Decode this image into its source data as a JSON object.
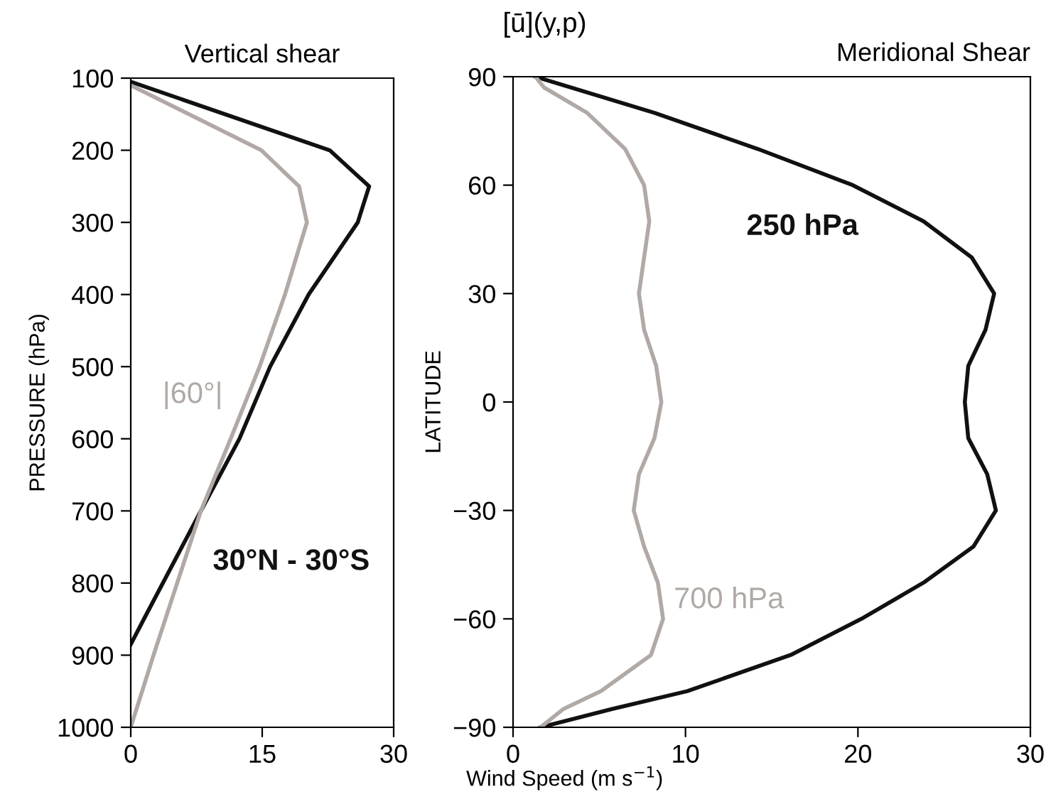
{
  "chart_data": [
    {
      "type": "line",
      "title": "Vertical shear",
      "ylabel": "PRESSURE (hPa)",
      "xlim": [
        0,
        30
      ],
      "xticks": [
        0,
        15,
        30
      ],
      "ylim": [
        1000,
        100
      ],
      "yticks": [
        100,
        200,
        300,
        400,
        500,
        600,
        700,
        800,
        900,
        1000
      ],
      "grid": false,
      "legend": false,
      "marker": "none",
      "line_style": "solid",
      "series": [
        {
          "name": "30°N - 30°S",
          "color": "#111111",
          "x": [
            0,
            22.7,
            27.2,
            25.9,
            20.3,
            15.9,
            12.4,
            8.0,
            1.5,
            0
          ],
          "values": [
            105,
            200,
            250,
            300,
            400,
            500,
            600,
            700,
            850,
            885
          ]
        },
        {
          "name": "|60°|",
          "color": "#b0a9a6",
          "x": [
            0,
            14.9,
            19.2,
            20.1,
            17.6,
            14.7,
            11.4,
            8.0,
            5.3,
            2.6,
            0
          ],
          "values": [
            110,
            200,
            250,
            300,
            400,
            500,
            600,
            700,
            800,
            900,
            1000
          ]
        }
      ]
    },
    {
      "type": "line",
      "title": "Meridional Shear",
      "xlabel": "Wind Speed (m s$^{−1}$)",
      "ylabel": "LATITUDE",
      "annotations": [
        "[ū](y,p)"
      ],
      "xlim": [
        0,
        30
      ],
      "xticks": [
        0,
        10,
        20,
        30
      ],
      "ylim": [
        -90,
        90
      ],
      "yticks": [
        -90,
        -60,
        -30,
        0,
        30,
        60,
        90
      ],
      "grid": false,
      "legend": false,
      "marker": "none",
      "line_style": "solid",
      "series": [
        {
          "name": "250 hPa",
          "color": "#111111",
          "x": [
            1.3,
            8.2,
            14.2,
            19.7,
            23.8,
            26.6,
            27.9,
            27.4,
            26.4,
            26.2,
            26.4,
            27.5,
            28.0,
            26.7,
            23.8,
            20.2,
            16.1,
            10.1,
            5.7,
            1.6
          ],
          "values": [
            90,
            80,
            70,
            60,
            50,
            40,
            30,
            20,
            10,
            0,
            -10,
            -20,
            -30,
            -40,
            -50,
            -60,
            -70,
            -80,
            -85,
            -90
          ]
        },
        {
          "name": "700 hPa",
          "color": "#b0a9a6",
          "x": [
            1.3,
            1.8,
            4.3,
            6.5,
            7.6,
            7.9,
            7.6,
            7.3,
            7.6,
            8.3,
            8.6,
            8.2,
            7.3,
            7.0,
            7.6,
            8.4,
            8.7,
            8.0,
            5.1,
            2.9,
            1.6
          ],
          "values": [
            90,
            87,
            80,
            70,
            60,
            50,
            40,
            30,
            20,
            10,
            0,
            -10,
            -20,
            -30,
            -40,
            -50,
            -60,
            -70,
            -80,
            -85,
            -90
          ]
        }
      ]
    }
  ]
}
